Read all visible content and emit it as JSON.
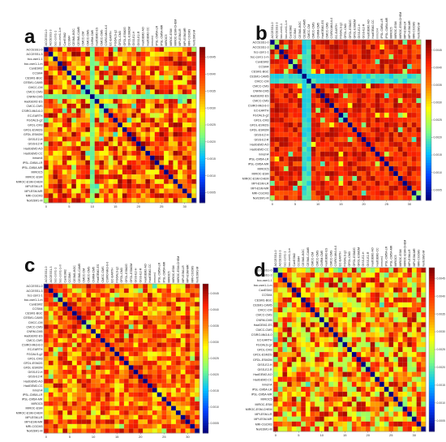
{
  "panels": [
    {
      "letter": "a"
    },
    {
      "letter": "b"
    },
    {
      "letter": "c"
    },
    {
      "letter": "d"
    }
  ],
  "colors": {
    "colormap": [
      "#00007f",
      "#0040ff",
      "#00c0ff",
      "#7fff7f",
      "#ffff00",
      "#ff8000",
      "#ff2000",
      "#800000"
    ],
    "diagonal": "#00007f",
    "frame": "#888888",
    "grid": "#d0d0d0"
  },
  "chart_data": [
    {
      "type": "heatmap",
      "panel": "a",
      "models": [
        "ACCESS1-0",
        "ACCESS1-3",
        "bcc-csm1-1",
        "bcc-csm1-1-m",
        "CanESM2",
        "CCSM4",
        "CESM1-BGC",
        "CESM1-CAM5",
        "CMCC-CM",
        "CMCC-CMS",
        "CNRM-CM5",
        "HadGEM2-ES",
        "CMCC-CMS",
        "CSIRO-Mk3-6-0",
        "EC-EARTH",
        "FGOALS-g2",
        "GFDL-CM3",
        "GFDL-ESM2G",
        "GFDL-ESM2M",
        "GISS-E2-H",
        "GISS-E2-R",
        "HadGEM2-AO",
        "HadGEM2-CC",
        "inmcm4",
        "IPSL-CM5A-LR",
        "IPSL-CM5A-MR",
        "MIROC5",
        "MIROC-ESM",
        "MIROC-ESM-CHEM",
        "MPI-ESM-LR",
        "MPI-ESM-MR",
        "MRI-CGCM3",
        "NorESM1-M"
      ],
      "x_ticks": [
        "0",
        "5",
        "10",
        "15",
        "20",
        "25",
        "30"
      ],
      "colorbar_ticks": [
        "0.0045",
        "0.0040",
        "0.0035",
        "0.0030",
        "0.0025",
        "0.0020",
        "0.0015",
        "0.0010",
        "0.0005"
      ],
      "vmin": 0.0002,
      "vmax": 0.0048,
      "pattern": {
        "seed": 11,
        "mean": 0.76,
        "spread": 0.22,
        "highlight_rows": [
          10
        ],
        "highlight_value": 0.42
      }
    },
    {
      "type": "heatmap",
      "panel": "b",
      "models": [
        "ACCESS1-0",
        "ACCESS1-3",
        "bcc-csm1-1",
        "bcc-csm1-1-m",
        "CanESM2",
        "CCSM4",
        "CESM1-BGC",
        "CESM1-CAM5",
        "CMCC-CM",
        "CMCC-CMS",
        "CNRM-CM5",
        "HadGEM2-ES",
        "CMCC-CMS",
        "CSIRO-Mk3-6-0",
        "EC-EARTH",
        "FGOALS-g2",
        "GFDL-CM3",
        "GFDL-ESM2G",
        "GFDL-ESM2M",
        "GISS-E2-H",
        "GISS-E2-R",
        "HadGEM2-AO",
        "HadGEM2-CC",
        "inmcm4",
        "IPSL-CM5A-LR",
        "IPSL-CM5A-MR",
        "MIROC5",
        "MIROC-ESM",
        "MIROC-ESM-CHEM",
        "MPI-ESM-LR",
        "MPI-ESM-MR",
        "MRI-CGCM3",
        "NorESM1-M"
      ],
      "x_ticks": [
        "0",
        "5",
        "10",
        "15",
        "20",
        "25",
        "30"
      ],
      "colorbar_ticks": [
        "0.0045",
        "0.0040",
        "0.0035",
        "0.0030",
        "0.0025",
        "0.0020",
        "0.0015",
        "0.0010",
        "0.0005"
      ],
      "vmin": 0.0002,
      "vmax": 0.0048,
      "pattern": {
        "seed": 23,
        "mean": 0.86,
        "spread": 0.1,
        "highlight_rows": [
          7,
          8
        ],
        "highlight_value": 0.35
      }
    },
    {
      "type": "heatmap",
      "panel": "c",
      "models": [
        "ACCESS1-0",
        "ACCESS1-3",
        "bcc-csm1-1",
        "bcc-csm1-1-m",
        "CanESM2",
        "CCSM4",
        "CESM1-BGC",
        "CESM1-CAM5",
        "CMCC-CM",
        "CMCC-CMS",
        "CNRM-CM5",
        "HadGEM2-ES",
        "CMCC-CMS",
        "CSIRO-Mk3-6-0",
        "EC-EARTH",
        "FGOALS-g2",
        "GFDL-CM3",
        "GFDL-ESM2G",
        "GFDL-ESM2M",
        "GISS-E2-H",
        "GISS-E2-R",
        "HadGEM2-AO",
        "HadGEM2-CC",
        "inmcm4",
        "IPSL-CM5A-LR",
        "IPSL-CM5A-MR",
        "MIROC5",
        "MIROC-ESM",
        "MIROC-ESM-CHEM",
        "MPI-ESM-LR",
        "MPI-ESM-MR",
        "MRI-CGCM3",
        "NorESM1-M"
      ],
      "x_ticks": [
        "0",
        "5",
        "10",
        "15",
        "20",
        "25",
        "30"
      ],
      "colorbar_ticks": [
        "0.0045",
        "0.0040",
        "0.0035",
        "0.0030",
        "0.0025",
        "0.0020",
        "0.0015",
        "0.0010",
        "0.0005"
      ],
      "vmin": 0.0002,
      "vmax": 0.0048,
      "pattern": {
        "seed": 37,
        "mean": 0.74,
        "spread": 0.2,
        "highlight_rows": [],
        "highlight_value": 0.5
      }
    },
    {
      "type": "heatmap",
      "panel": "d",
      "models": [
        "ACCESS1-0",
        "ACCESS1-3",
        "bcc-csm1-1",
        "bcc-csm1-1-m",
        "CanESM2",
        "CCSM4",
        "CESM1-BGC",
        "CESM1-CAM5",
        "CMCC-CM",
        "CMCC-CMS",
        "CNRM-CM5",
        "HadGEM2-ES",
        "CMCC-CMS",
        "CSIRO-Mk3-6-0",
        "EC-EARTH",
        "FGOALS-g2",
        "GFDL-CM3",
        "GFDL-ESM2G",
        "GFDL-ESM2M",
        "GISS-E2-H",
        "GISS-E2-R",
        "HadGEM2-AO",
        "HadGEM2-CC",
        "inmcm4",
        "IPSL-CM5A-LR",
        "IPSL-CM5A-MR",
        "MIROC5",
        "MIROC-ESM",
        "MIROC-ESM-CHEM",
        "MPI-ESM-LR",
        "MPI-ESM-MR",
        "MRI-CGCM3",
        "NorESM1-M"
      ],
      "x_ticks": [
        "0",
        "5",
        "10",
        "15",
        "20",
        "25",
        "30"
      ],
      "colorbar_ticks": [
        "0.0045",
        "0.0040",
        "0.0035",
        "0.0030",
        "0.0025",
        "0.0020",
        "0.0015",
        "0.0010",
        "0.0005"
      ],
      "vmin": 0.0002,
      "vmax": 0.0048,
      "pattern": {
        "seed": 53,
        "mean": 0.7,
        "spread": 0.26,
        "highlight_rows": [],
        "highlight_value": 0.55
      }
    }
  ]
}
